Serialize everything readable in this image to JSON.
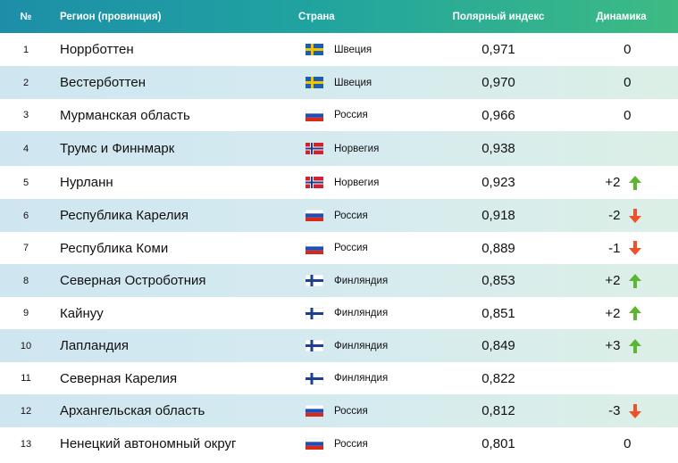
{
  "header": {
    "num": "№",
    "region": "Регион (провинция)",
    "country": "Страна",
    "index": "Полярный индекс",
    "dynamics": "Динамика"
  },
  "colors": {
    "up_arrow": "#5db632",
    "down_arrow": "#f0502a"
  },
  "rows": [
    {
      "num": "1",
      "region": "Норрботтен",
      "flag": "sweden-flag",
      "country": "Швеция",
      "index": "0,971",
      "dynamics": "0",
      "trend": "none"
    },
    {
      "num": "2",
      "region": "Вестерботтен",
      "flag": "sweden-flag",
      "country": "Швеция",
      "index": "0,970",
      "dynamics": "0",
      "trend": "none"
    },
    {
      "num": "3",
      "region": "Мурманская область",
      "flag": "russia-flag",
      "country": "Россия",
      "index": "0,966",
      "dynamics": "0",
      "trend": "none"
    },
    {
      "num": "4",
      "region": "Трумс и Финнмарк",
      "flag": "norway-flag",
      "country": "Норвегия",
      "index": "0,938",
      "dynamics": "",
      "trend": "none"
    },
    {
      "num": "5",
      "region": "Нурланн",
      "flag": "norway-flag",
      "country": "Норвегия",
      "index": "0,923",
      "dynamics": "+2",
      "trend": "up"
    },
    {
      "num": "6",
      "region": "Республика Карелия",
      "flag": "russia-flag",
      "country": "Россия",
      "index": "0,918",
      "dynamics": "-2",
      "trend": "down"
    },
    {
      "num": "7",
      "region": "Республика Коми",
      "flag": "russia-flag",
      "country": "Россия",
      "index": "0,889",
      "dynamics": "-1",
      "trend": "down"
    },
    {
      "num": "8",
      "region": "Северная Остроботния",
      "flag": "finland-flag",
      "country": "Финляндия",
      "index": "0,853",
      "dynamics": "+2",
      "trend": "up"
    },
    {
      "num": "9",
      "region": "Кайнуу",
      "flag": "finland-flag",
      "country": "Финляндия",
      "index": "0,851",
      "dynamics": "+2",
      "trend": "up"
    },
    {
      "num": "10",
      "region": "Лапландия",
      "flag": "finland-flag",
      "country": "Финляндия",
      "index": "0,849",
      "dynamics": "+3",
      "trend": "up"
    },
    {
      "num": "11",
      "region": "Северная Карелия",
      "flag": "finland-flag",
      "country": "Финляндия",
      "index": "0,822",
      "dynamics": "",
      "trend": "none"
    },
    {
      "num": "12",
      "region": "Архангельская область",
      "flag": "russia-flag",
      "country": "Россия",
      "index": "0,812",
      "dynamics": "-3",
      "trend": "down"
    },
    {
      "num": "13",
      "region": "Ненецкий автономный округ",
      "flag": "russia-flag",
      "country": "Россия",
      "index": "0,801",
      "dynamics": "0",
      "trend": "none"
    }
  ]
}
